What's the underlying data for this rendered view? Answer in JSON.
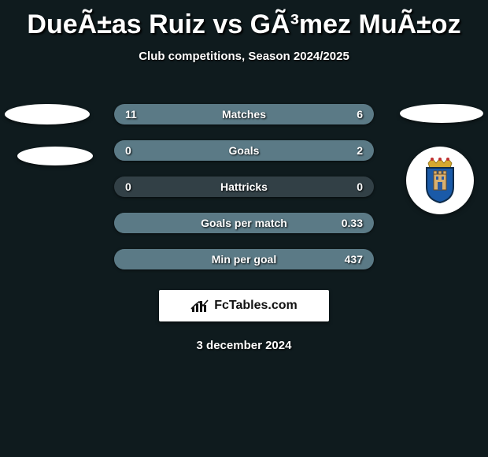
{
  "title": "DueÃ±as Ruiz vs GÃ³mez MuÃ±oz",
  "subtitle": "Club competitions, Season 2024/2025",
  "date": "3 december 2024",
  "logo_text": "FcTables.com",
  "colors": {
    "background": "#0f1b1e",
    "bar_track": "#324046",
    "bar_fill": "#5b7a86",
    "logo_bg": "#ffffff"
  },
  "crest_colors": {
    "crown": "#d4a830",
    "shield": "#1a5aa8",
    "tower": "#d8b070",
    "outline": "#0d2b4a"
  },
  "stats": [
    {
      "label": "Matches",
      "left_val": "11",
      "right_val": "6",
      "left_fill_pct": 65,
      "right_fill_pct": 35
    },
    {
      "label": "Goals",
      "left_val": "0",
      "right_val": "2",
      "left_fill_pct": 0,
      "right_fill_pct": 100
    },
    {
      "label": "Hattricks",
      "left_val": "0",
      "right_val": "0",
      "left_fill_pct": 0,
      "right_fill_pct": 0
    },
    {
      "label": "Goals per match",
      "left_val": "",
      "right_val": "0.33",
      "left_fill_pct": 0,
      "right_fill_pct": 100
    },
    {
      "label": "Min per goal",
      "left_val": "",
      "right_val": "437",
      "left_fill_pct": 0,
      "right_fill_pct": 100
    }
  ]
}
